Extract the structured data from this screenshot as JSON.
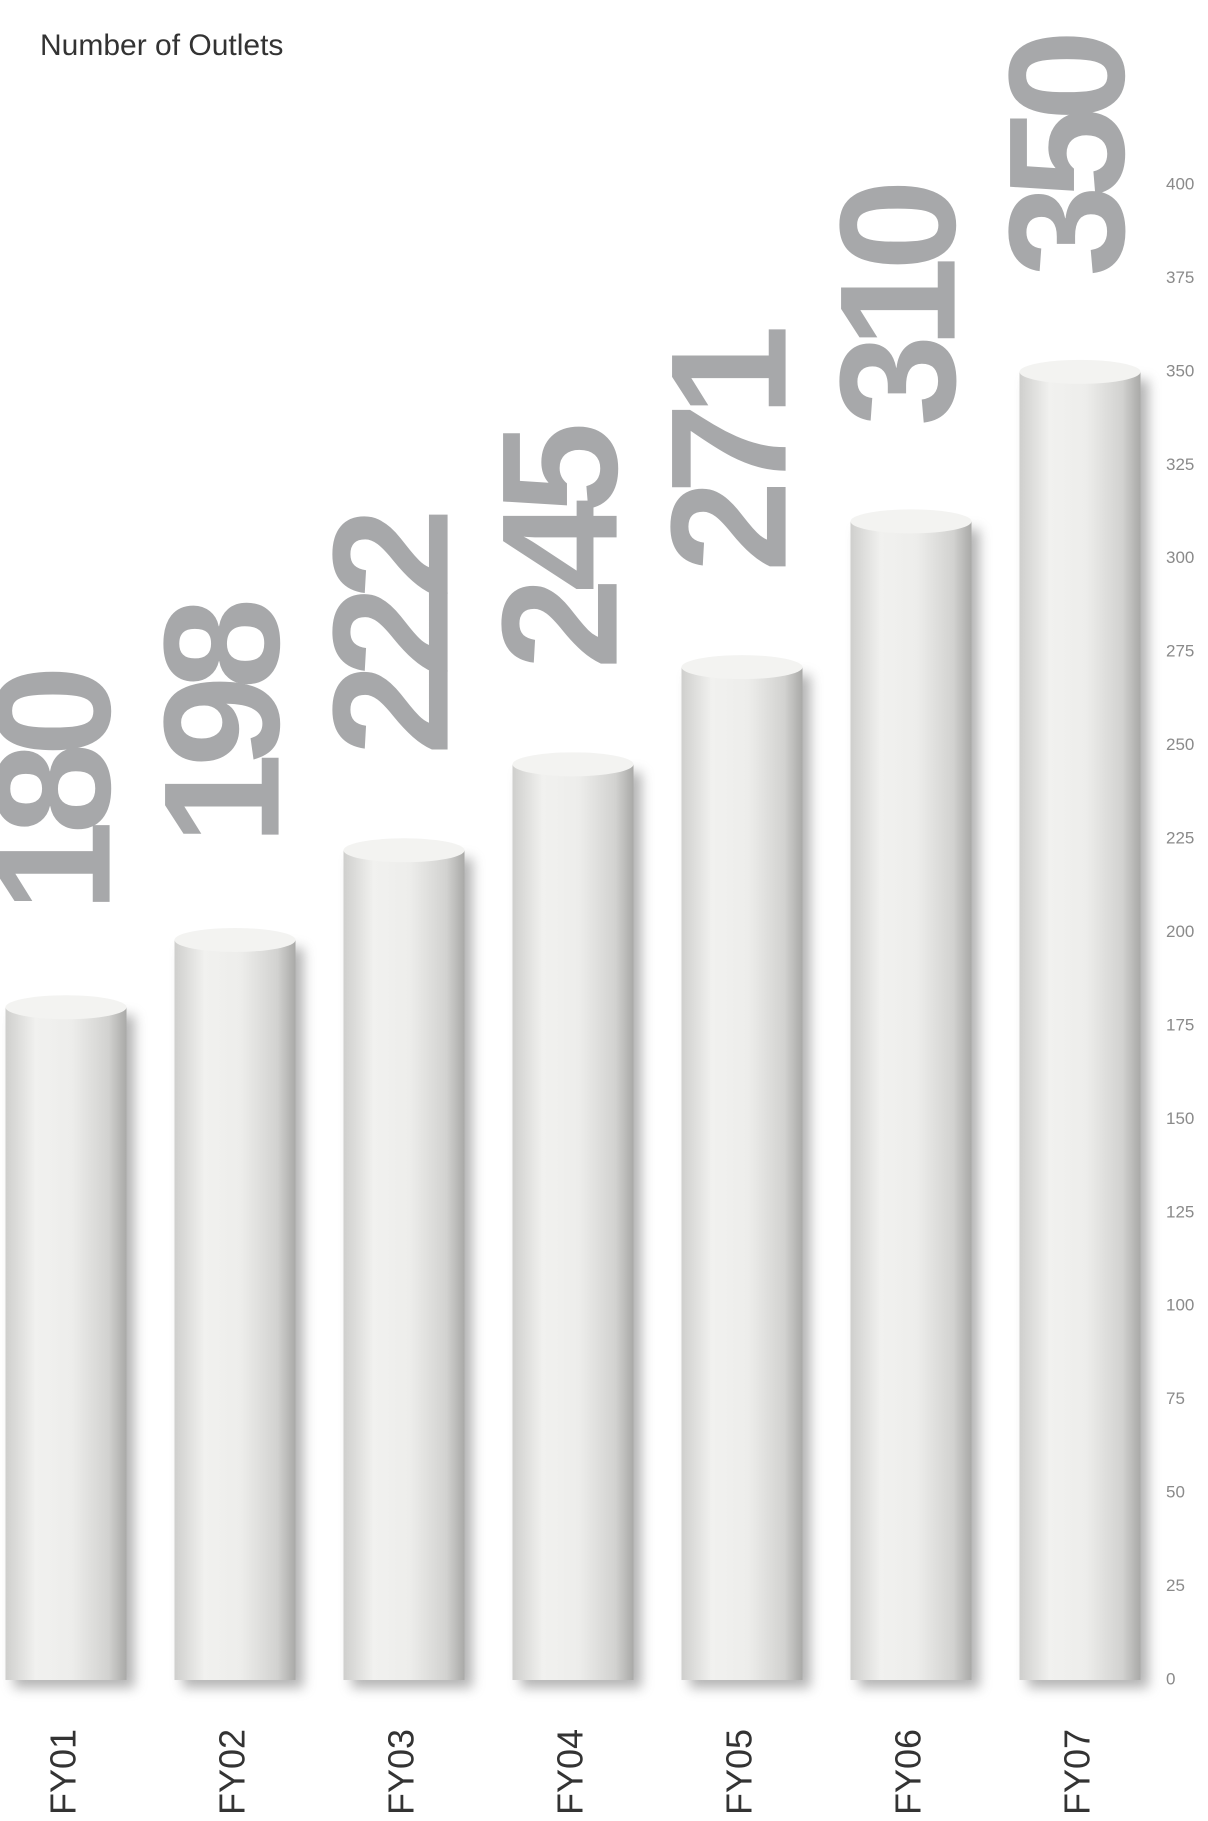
{
  "chart_data": {
    "type": "bar",
    "title": "Number of Outlets",
    "categories": [
      "FY01",
      "FY02",
      "FY03",
      "FY04",
      "FY05",
      "FY06",
      "FY07"
    ],
    "values": [
      180,
      198,
      222,
      245,
      271,
      310,
      350
    ],
    "color": "#e6e6e4",
    "value_label_color": "#a7a8aa",
    "ylim": [
      0,
      400
    ],
    "yticks": [
      0,
      25,
      50,
      75,
      100,
      125,
      150,
      175,
      200,
      225,
      250,
      275,
      300,
      325,
      350,
      375,
      400
    ],
    "grid": false
  }
}
